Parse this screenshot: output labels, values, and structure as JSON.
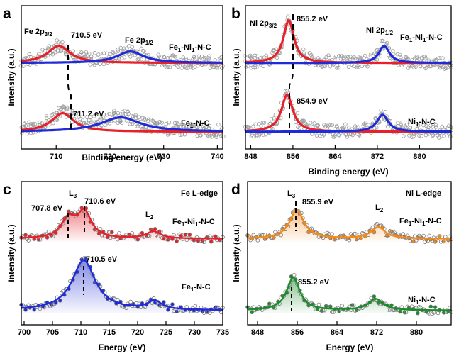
{
  "chart_data": [
    {
      "panel": "a",
      "type": "line",
      "xlabel": "Binding energy (eV)",
      "ylabel": "Intensity (a.u.)",
      "xlim": [
        703.5,
        741
      ],
      "xticks": [
        710,
        720,
        730,
        740
      ],
      "ylim": [
        0,
        1
      ],
      "series": [
        {
          "name": "Fe1-Ni1-N-C",
          "baseline": 0.6,
          "peaks": [
            {
              "label": "Fe 2p3/2",
              "center": 710.5,
              "fwhm": 5,
              "height": 0.12,
              "color": "#e8202a"
            },
            {
              "label": "Fe 2p1/2",
              "center": 723.8,
              "fwhm": 6,
              "height": 0.08,
              "color": "#1f2bd6"
            }
          ]
        },
        {
          "name": "Fe1-N-C",
          "baseline": 0.12,
          "peaks": [
            {
              "label": "Fe 2p3/2",
              "center": 711.2,
              "fwhm": 5,
              "height": 0.13,
              "color": "#e8202a"
            },
            {
              "label": "Fe 2p1/2",
              "center": 722.0,
              "fwhm": 9,
              "height": 0.1,
              "color": "#1f2bd6"
            }
          ]
        }
      ]
    },
    {
      "panel": "b",
      "type": "line",
      "xlabel": "Binding energy (eV)",
      "ylabel": "Intensity (a.u.)",
      "xlim": [
        847,
        886
      ],
      "xticks": [
        848,
        856,
        864,
        872,
        880
      ],
      "ylim": [
        0,
        1
      ],
      "series": [
        {
          "name": "Fe1-Ni1-N-C",
          "baseline": 0.6,
          "peaks": [
            {
              "label": "Ni 2p3/2",
              "center": 855.2,
              "fwhm": 2.4,
              "height": 0.3,
              "color": "#e8202a"
            },
            {
              "label": "Ni 2p1/2",
              "center": 873.3,
              "fwhm": 2.4,
              "height": 0.12,
              "color": "#1f2bd6"
            }
          ]
        },
        {
          "name": "Ni1-N-C",
          "baseline": 0.12,
          "peaks": [
            {
              "label": "Ni 2p3/2",
              "center": 854.9,
              "fwhm": 2.6,
              "height": 0.26,
              "color": "#e8202a"
            },
            {
              "label": "Ni 2p1/2",
              "center": 873.0,
              "fwhm": 2.6,
              "height": 0.12,
              "color": "#1f2bd6"
            }
          ]
        }
      ]
    },
    {
      "panel": "c",
      "type": "line",
      "xlabel": "Energy (eV)",
      "ylabel": "Intensity (a.u.)",
      "xlim": [
        699.5,
        735
      ],
      "xticks": [
        700,
        705,
        710,
        715,
        720,
        725,
        730,
        735
      ],
      "ylim": [
        0,
        1
      ],
      "series": [
        {
          "name": "Fe1-Ni1-N-C",
          "baseline": 0.6,
          "color": "#e8202a",
          "peaks": [
            {
              "center": 707.8,
              "fwhm": 3,
              "height": 0.13
            },
            {
              "center": 710.6,
              "fwhm": 3,
              "height": 0.18
            },
            {
              "center": 722.8,
              "fwhm": 3,
              "height": 0.05
            }
          ]
        },
        {
          "name": "Fe1-N-C",
          "baseline": 0.1,
          "color": "#1f2bd6",
          "peaks": [
            {
              "center": 710.5,
              "fwhm": 5,
              "height": 0.35
            },
            {
              "center": 723.0,
              "fwhm": 3,
              "height": 0.06
            }
          ]
        }
      ]
    },
    {
      "panel": "d",
      "type": "line",
      "xlabel": "Energy (eV)",
      "ylabel": "Intensity (a.u.)",
      "xlim": [
        846,
        887
      ],
      "xticks": [
        848,
        856,
        864,
        872,
        880
      ],
      "ylim": [
        0,
        1
      ],
      "series": [
        {
          "name": "Fe1-Ni1-N-C",
          "baseline": 0.6,
          "color": "#f28a1e",
          "peaks": [
            {
              "center": 855.9,
              "fwhm": 3.5,
              "height": 0.2
            },
            {
              "center": 872.3,
              "fwhm": 3.5,
              "height": 0.08
            }
          ]
        },
        {
          "name": "Ni1-N-C",
          "baseline": 0.1,
          "color": "#1a8c2a",
          "peaks": [
            {
              "center": 855.2,
              "fwhm": 3.2,
              "height": 0.23
            },
            {
              "center": 871.8,
              "fwhm": 3.5,
              "height": 0.08
            }
          ]
        }
      ]
    }
  ],
  "labels": {
    "panel_a": "a",
    "panel_b": "b",
    "panel_c": "c",
    "panel_d": "d",
    "a_fe2p32": "Fe 2p3/2",
    "a_fe2p12": "Fe 2p1/2",
    "a_top_peak": "710.5 eV",
    "a_bottom_peak": "711.2 eV",
    "a_top_sample": "Fe1-Ni1-N-C",
    "a_bottom_sample": "Fe1-N-C",
    "b_ni2p32": "Ni 2p3/2",
    "b_ni2p12": "Ni 2p1/2",
    "b_top_peak": "855.2 eV",
    "b_bottom_peak": "854.9 eV",
    "b_top_sample": "Fe1-Ni1-N-C",
    "b_bottom_sample": "Ni1-N-C",
    "c_edge": "Fe L-edge",
    "c_L3": "L3",
    "c_L2": "L2",
    "c_peak1": "707.8 eV",
    "c_peak2": "710.6 eV",
    "c_peak3": "710.5 eV",
    "c_top_sample": "Fe1-Ni1-N-C",
    "c_bottom_sample": "Fe1-N-C",
    "d_edge": "Ni L-edge",
    "d_L3": "L3",
    "d_L2": "L2",
    "d_top_peak": "855.9 eV",
    "d_bottom_peak": "855.2 eV",
    "d_top_sample": "Fe1-Ni1-N-C",
    "d_bottom_sample": "Ni1-N-C"
  }
}
